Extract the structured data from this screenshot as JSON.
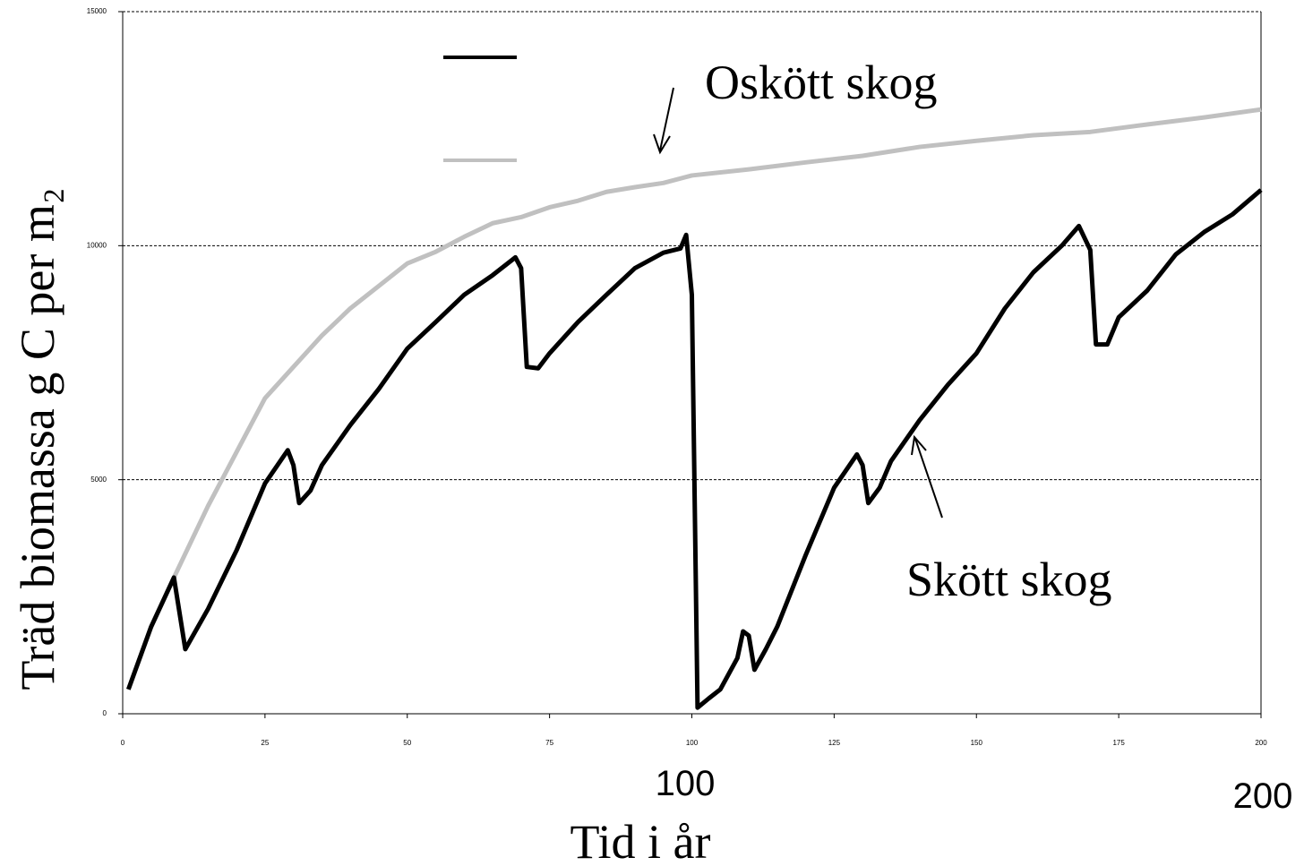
{
  "chart_data": {
    "type": "line",
    "xlabel": "Tid i år",
    "ylabel": "Träd biomassa g C per m₂",
    "annotations": [
      "100",
      "200"
    ],
    "series": [
      {
        "name": "Skött skog",
        "color": "#000000",
        "x": [
          1,
          5,
          9,
          11,
          15,
          20,
          25,
          29,
          30,
          31,
          33,
          35,
          40,
          45,
          50,
          55,
          60,
          65,
          69,
          70,
          71,
          73,
          75,
          80,
          85,
          90,
          95,
          98,
          99,
          100,
          101,
          103,
          105,
          108,
          109,
          110,
          111,
          113,
          115,
          120,
          125,
          129,
          130,
          131,
          133,
          135,
          140,
          145,
          150,
          155,
          160,
          165,
          168,
          170,
          171,
          173,
          175,
          180,
          185,
          190,
          195,
          200
        ],
        "values": [
          520,
          1860,
          2910,
          1380,
          2240,
          3490,
          4920,
          5630,
          5310,
          4500,
          4770,
          5310,
          6170,
          6940,
          7800,
          8370,
          8950,
          9370,
          9750,
          9520,
          7410,
          7380,
          7700,
          8370,
          8950,
          9520,
          9850,
          9940,
          10230,
          8950,
          130,
          330,
          520,
          1190,
          1760,
          1670,
          940,
          1380,
          1860,
          3390,
          4830,
          5540,
          5310,
          4500,
          4830,
          5400,
          6270,
          7030,
          7700,
          8660,
          9430,
          10000,
          10420,
          9910,
          7890,
          7890,
          8470,
          9040,
          9810,
          10290,
          10670,
          11190
        ]
      },
      {
        "name": "Oskött skog",
        "color": "#c0c0c0",
        "x": [
          1,
          5,
          9,
          15,
          20,
          25,
          30,
          35,
          40,
          45,
          50,
          55,
          60,
          65,
          70,
          75,
          80,
          85,
          90,
          95,
          100,
          110,
          120,
          130,
          140,
          150,
          160,
          170,
          180,
          190,
          200
        ],
        "values": [
          520,
          1860,
          2910,
          4440,
          5590,
          6740,
          7410,
          8080,
          8660,
          9140,
          9620,
          9870,
          10190,
          10480,
          10610,
          10820,
          10960,
          11150,
          11250,
          11340,
          11500,
          11630,
          11780,
          11920,
          12110,
          12240,
          12360,
          12430,
          12590,
          12740,
          12910
        ]
      }
    ],
    "xlim": [
      0,
      200
    ],
    "xticks": [
      0,
      25,
      50,
      75,
      100,
      125,
      150,
      175,
      200
    ],
    "ylim": [
      0,
      15000
    ],
    "yticks": [
      0,
      5000,
      10000,
      15000
    ],
    "grid": true
  }
}
